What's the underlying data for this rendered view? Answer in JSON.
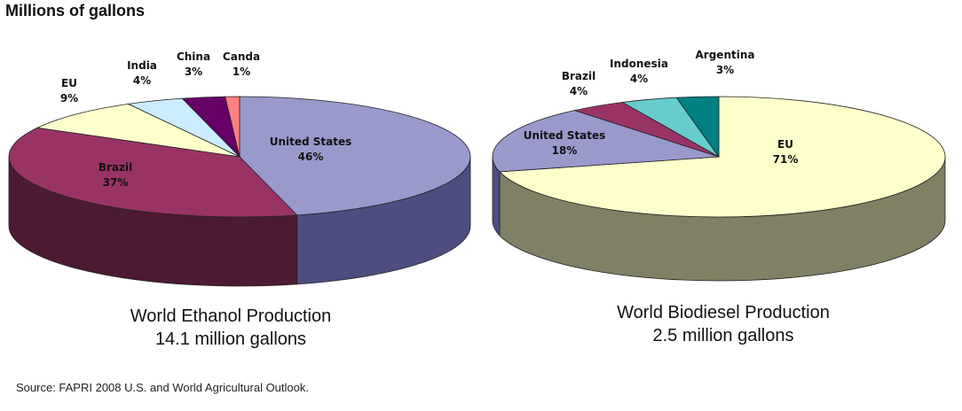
{
  "header": "Millions of gallons",
  "chart_data": [
    {
      "type": "pie",
      "title": "World Ethanol Production",
      "subtitle": "14.1 million gallons",
      "slices": [
        {
          "name": "United States",
          "value": 46,
          "label": "46%",
          "color": "#9999cc",
          "side": "#4d4d80"
        },
        {
          "name": "Brazil",
          "value": 37,
          "label": "37%",
          "color": "#993366",
          "side": "#4d1a33"
        },
        {
          "name": "EU",
          "value": 9,
          "label": "9%",
          "color": "#ffffcc",
          "side": "#808066"
        },
        {
          "name": "India",
          "value": 4,
          "label": "4%",
          "color": "#ccecff",
          "side": "#667680"
        },
        {
          "name": "China",
          "value": 3,
          "label": "3%",
          "color": "#660066",
          "side": "#330033"
        },
        {
          "name": "Canda",
          "value": 1,
          "label": "1%",
          "color": "#ff8080",
          "side": "#804040"
        }
      ]
    },
    {
      "type": "pie",
      "title": "World Biodiesel Production",
      "subtitle": "2.5 million gallons",
      "slices": [
        {
          "name": "EU",
          "value": 71,
          "label": "71%",
          "color": "#ffffcc",
          "side": "#808066"
        },
        {
          "name": "United States",
          "value": 18,
          "label": "18%",
          "color": "#9999cc",
          "side": "#4d4d80"
        },
        {
          "name": "Brazil",
          "value": 4,
          "label": "4%",
          "color": "#993366",
          "side": "#4d1a33"
        },
        {
          "name": "Indonesia",
          "value": 4,
          "label": "4%",
          "color": "#66cccc",
          "side": "#336666"
        },
        {
          "name": "Argentina",
          "value": 3,
          "label": "3%",
          "color": "#008080",
          "side": "#004040"
        }
      ]
    }
  ],
  "source": "Source: FAPRI 2008 U.S. and World Agricultural Outlook."
}
